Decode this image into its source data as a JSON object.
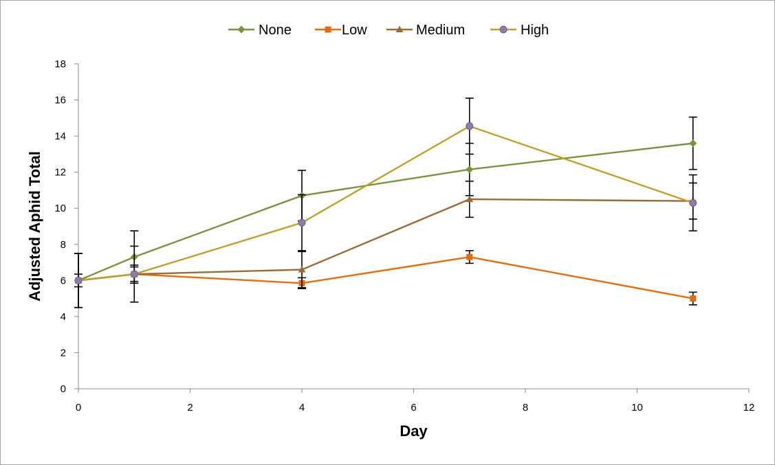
{
  "chart_data": {
    "type": "line",
    "title": "",
    "xlabel": "Day",
    "ylabel": "Adjusted Aphid Total",
    "xlim": [
      0,
      12
    ],
    "ylim": [
      0,
      18
    ],
    "xticks": [
      0,
      2,
      4,
      6,
      8,
      10,
      12
    ],
    "yticks": [
      0,
      2,
      4,
      6,
      8,
      10,
      12,
      14,
      16,
      18
    ],
    "grid": false,
    "legend_position": "top",
    "x": [
      0,
      1,
      4,
      7,
      11
    ],
    "series": [
      {
        "name": "None",
        "color": "#77933c",
        "marker": "diamond",
        "values": [
          6.0,
          7.3,
          10.7,
          12.15,
          13.6
        ],
        "errors": [
          1.5,
          1.45,
          1.4,
          1.45,
          1.45
        ]
      },
      {
        "name": "Low",
        "color": "#e46c0a",
        "marker": "square",
        "values": [
          6.0,
          6.35,
          5.85,
          7.3,
          5.0
        ],
        "errors": [
          0.35,
          0.4,
          0.3,
          0.35,
          0.35
        ]
      },
      {
        "name": "Medium",
        "color": "#9b6b35",
        "marker": "triangle",
        "values": [
          6.0,
          6.35,
          6.6,
          10.5,
          10.4
        ],
        "errors": [
          1.5,
          1.55,
          1.0,
          1.0,
          1.0
        ]
      },
      {
        "name": "High",
        "color": "#c0a02a",
        "marker": "circle",
        "markerFill": "#8e7cab",
        "values": [
          6.0,
          6.35,
          9.2,
          14.55,
          10.3
        ],
        "errors": [
          1.5,
          0.5,
          1.55,
          1.55,
          1.55
        ]
      }
    ]
  }
}
